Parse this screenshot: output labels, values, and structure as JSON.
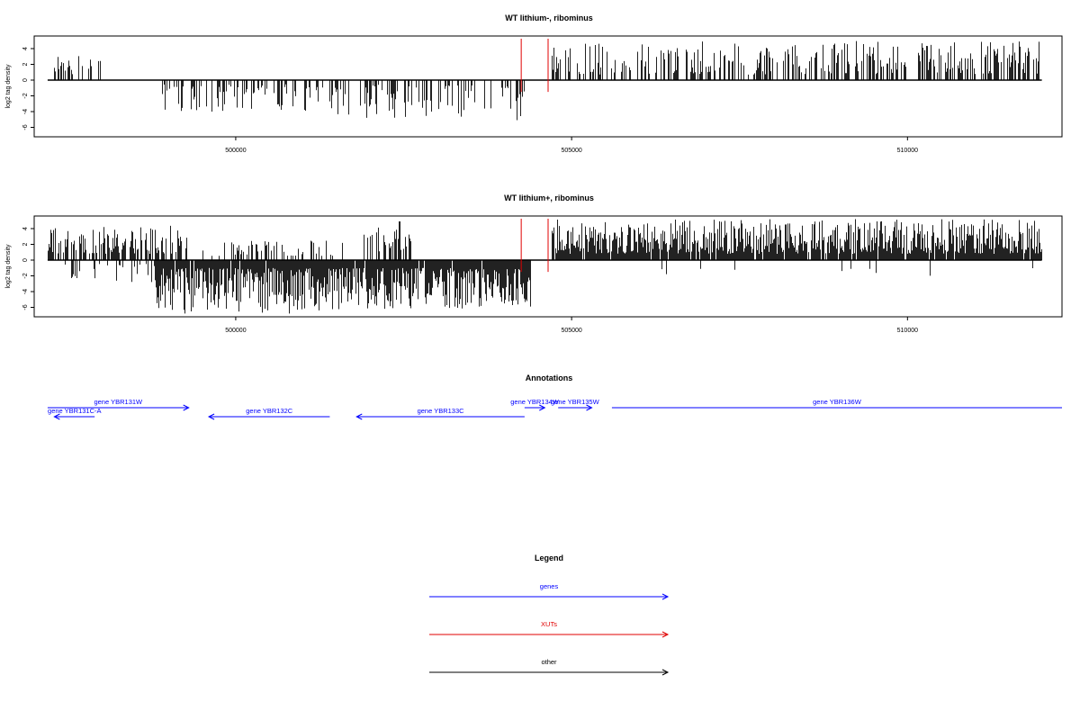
{
  "chart_data": [
    {
      "type": "bar",
      "title": "WT lithium-, ribominus",
      "ylabel": "log2 tag density",
      "xlabel": "",
      "xlim": [
        497000,
        512300
      ],
      "ylim": [
        -7.2,
        5.6
      ],
      "y_ticks": [
        -6,
        -4,
        -2,
        0,
        2,
        4
      ],
      "x_ticks": [
        500000,
        505000,
        510000
      ],
      "marker_color": "#e00000",
      "markers_x": [
        504250,
        504650
      ],
      "series": [
        {
          "x_range": [
            497300,
            497550
          ],
          "density": 0.45,
          "sign": 1,
          "amp": [
            1.0,
            4.0
          ],
          "seed": 11
        },
        {
          "x_range": [
            497550,
            498000
          ],
          "density": 0.25,
          "sign": 1,
          "amp": [
            0.6,
            3.2
          ],
          "seed": 12
        },
        {
          "x_range": [
            498900,
            501400
          ],
          "density": 0.35,
          "sign": -1,
          "amp": [
            0.5,
            4.0
          ],
          "seed": 13
        },
        {
          "x_range": [
            501400,
            504400
          ],
          "density": 0.4,
          "sign": -1,
          "amp": [
            0.6,
            5.2
          ],
          "seed": 14
        },
        {
          "x_range": [
            504700,
            512000
          ],
          "density": 0.45,
          "sign": 1,
          "amp": [
            0.7,
            5.0
          ],
          "seed": 15
        }
      ]
    },
    {
      "type": "bar",
      "title": "WT lithium+, ribominus",
      "ylabel": "log2 tag density",
      "xlabel": "",
      "xlim": [
        497000,
        512300
      ],
      "ylim": [
        -7.2,
        5.6
      ],
      "y_ticks": [
        -6,
        -4,
        -2,
        0,
        2,
        4
      ],
      "x_ticks": [
        500000,
        505000,
        510000
      ],
      "marker_color": "#e00000",
      "markers_x": [
        504250,
        504650
      ],
      "series": [
        {
          "x_range": [
            497200,
            499300
          ],
          "density": 0.55,
          "sign": 1,
          "amp": [
            0.8,
            4.4
          ],
          "seed": 21
        },
        {
          "x_range": [
            497400,
            499300
          ],
          "density": 0.2,
          "sign": -1,
          "amp": [
            0.5,
            2.8
          ],
          "seed": 22
        },
        {
          "x_range": [
            498800,
            501600
          ],
          "density": 0.95,
          "sign": -1,
          "amp": [
            1.0,
            6.8
          ],
          "seed": 23
        },
        {
          "x_range": [
            499500,
            501600
          ],
          "density": 0.25,
          "sign": 1,
          "amp": [
            0.5,
            2.5
          ],
          "seed": 24
        },
        {
          "x_range": [
            501600,
            504400
          ],
          "density": 0.95,
          "sign": -1,
          "amp": [
            1.0,
            6.2
          ],
          "seed": 25
        },
        {
          "x_range": [
            501900,
            502600
          ],
          "density": 0.45,
          "sign": 1,
          "amp": [
            1.0,
            5.0
          ],
          "seed": 26
        },
        {
          "x_range": [
            504700,
            512000
          ],
          "density": 0.95,
          "sign": 1,
          "amp": [
            0.8,
            5.2
          ],
          "seed": 27
        },
        {
          "x_range": [
            505000,
            512000
          ],
          "density": 0.02,
          "sign": -1,
          "amp": [
            1.0,
            2.0
          ],
          "seed": 28
        }
      ]
    }
  ],
  "annotations": {
    "title": "Annotations",
    "color": "#0000ff",
    "genes": [
      {
        "label": "gene YBR131W",
        "start": 497200,
        "end": 499300,
        "strand": "+"
      },
      {
        "label": "gene YBR131C-A",
        "start": 497300,
        "end": 497900,
        "strand": "-"
      },
      {
        "label": "gene YBR132C",
        "start": 499600,
        "end": 501400,
        "strand": "-"
      },
      {
        "label": "gene YBR133C",
        "start": 501800,
        "end": 504300,
        "strand": "-"
      },
      {
        "label": "gene YBR134W",
        "start": 504300,
        "end": 504600,
        "strand": "+"
      },
      {
        "label": "gene YBR135W",
        "start": 504800,
        "end": 505300,
        "strand": "+"
      },
      {
        "label": "gene YBR136W",
        "start": 505600,
        "end": 512300,
        "strand": "+"
      }
    ]
  },
  "legend": {
    "title": "Legend",
    "items": [
      {
        "label": "genes",
        "color": "#0000ff"
      },
      {
        "label": "XUTs",
        "color": "#e00000"
      },
      {
        "label": "other",
        "color": "#000000"
      }
    ]
  }
}
